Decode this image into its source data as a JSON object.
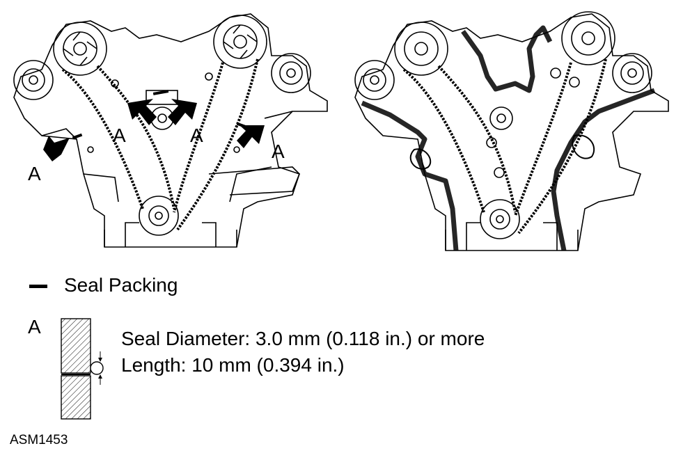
{
  "diagram": {
    "callout_letter": "A",
    "legend": {
      "seal_packing_label": "Seal Packing",
      "detail_letter": "A",
      "seal_diameter_text": "Seal Diameter: 3.0 mm (0.118 in.) or more",
      "length_text": "Length: 10 mm (0.394 in.)"
    },
    "figure_code": "ASM1453"
  }
}
